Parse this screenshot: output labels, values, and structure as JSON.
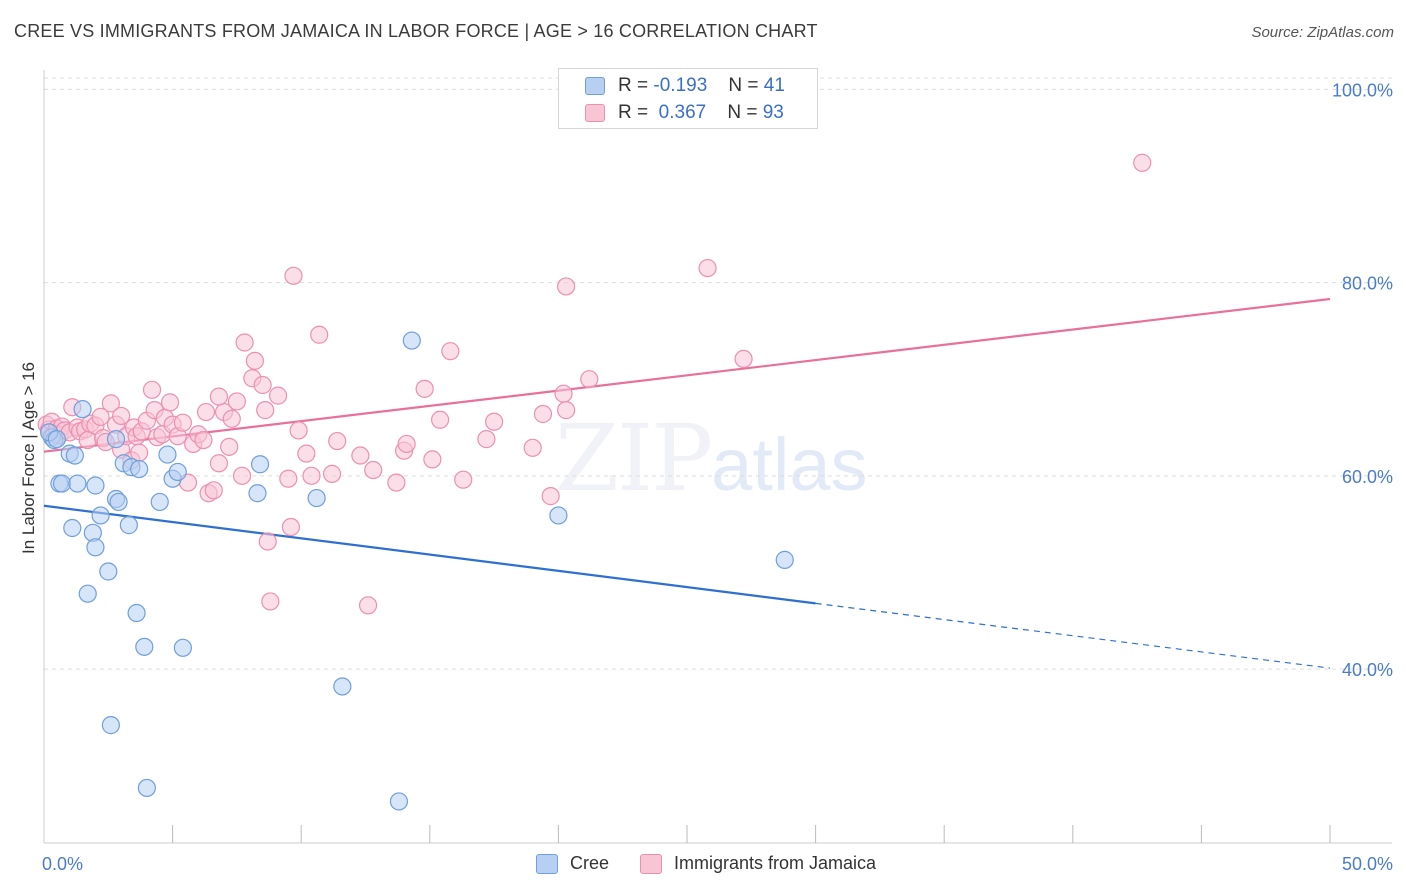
{
  "title": "CREE VS IMMIGRANTS FROM JAMAICA IN LABOR FORCE | AGE > 16 CORRELATION CHART",
  "source": "Source: ZipAtlas.com",
  "watermark": {
    "zip": "ZIP",
    "atlas": "atlas"
  },
  "colors": {
    "cree_fill": "#b7d0f2",
    "cree_stroke": "#6f9fdc",
    "cree_line": "#2e6fd0",
    "jam_fill": "#f8c5d5",
    "jam_stroke": "#ee8fae",
    "jam_line": "#e8709a",
    "grid": "#dddddd",
    "tick_label": "#4a7cc9"
  },
  "legend_top": {
    "rows": [
      {
        "r_label": "R =",
        "r_value": "-0.193",
        "n_label": "N =",
        "n_value": "41"
      },
      {
        "r_label": "R =",
        "r_value": "0.367",
        "n_label": "N =",
        "n_value": "93"
      }
    ]
  },
  "legend_bottom": {
    "cree": "Cree",
    "jamaica": "Immigrants from Jamaica"
  },
  "chart_data": {
    "type": "scatter",
    "title": "CREE VS IMMIGRANTS FROM JAMAICA IN LABOR FORCE | AGE > 16 CORRELATION CHART",
    "xlabel": "",
    "ylabel": "In Labor Force | Age > 16",
    "xlim": [
      0,
      50
    ],
    "ylim": [
      22,
      102
    ],
    "x_tick_labels": [
      "0.0%",
      "50.0%"
    ],
    "y_ticks": [
      40,
      60,
      80,
      100
    ],
    "y_tick_labels": [
      "40.0%",
      "60.0%",
      "80.0%",
      "100.0%"
    ],
    "grid": true,
    "legend_position": "top-center",
    "series": [
      {
        "name": "Cree",
        "R": -0.193,
        "N": 41,
        "trend": {
          "x0": 0,
          "y0": 56.9,
          "x1": 30,
          "y1": 46.8,
          "dash_to_x": 50,
          "dash_to_y": 40.1
        },
        "points": [
          [
            0.3,
            64.0
          ],
          [
            0.4,
            63.7
          ],
          [
            0.6,
            59.2
          ],
          [
            0.7,
            59.2
          ],
          [
            1.0,
            62.3
          ],
          [
            1.1,
            54.6
          ],
          [
            1.2,
            62.1
          ],
          [
            1.3,
            59.2
          ],
          [
            1.5,
            66.9
          ],
          [
            1.7,
            47.8
          ],
          [
            1.9,
            54.1
          ],
          [
            2.0,
            59.0
          ],
          [
            2.0,
            52.6
          ],
          [
            2.2,
            55.9
          ],
          [
            2.5,
            50.1
          ],
          [
            2.6,
            34.2
          ],
          [
            2.8,
            63.8
          ],
          [
            2.8,
            57.6
          ],
          [
            2.9,
            57.3
          ],
          [
            3.1,
            61.3
          ],
          [
            3.3,
            54.9
          ],
          [
            3.4,
            60.9
          ],
          [
            3.6,
            45.8
          ],
          [
            3.7,
            60.7
          ],
          [
            3.9,
            42.3
          ],
          [
            4.0,
            27.7
          ],
          [
            4.5,
            57.3
          ],
          [
            4.8,
            62.2
          ],
          [
            5.0,
            59.7
          ],
          [
            5.2,
            60.4
          ],
          [
            5.4,
            42.2
          ],
          [
            8.3,
            58.2
          ],
          [
            8.4,
            61.2
          ],
          [
            10.6,
            57.7
          ],
          [
            11.6,
            38.2
          ],
          [
            13.8,
            26.3
          ],
          [
            14.3,
            74.0
          ],
          [
            20.0,
            55.9
          ],
          [
            28.8,
            51.3
          ],
          [
            0.2,
            64.5
          ],
          [
            0.5,
            63.8
          ]
        ]
      },
      {
        "name": "Immigrants from Jamaica",
        "R": 0.367,
        "N": 93,
        "trend": {
          "x0": 0,
          "y0": 62.5,
          "x1": 50,
          "y1": 78.3
        },
        "points": [
          [
            0.1,
            65.3
          ],
          [
            0.2,
            64.8
          ],
          [
            0.3,
            65.6
          ],
          [
            0.4,
            64.3
          ],
          [
            0.5,
            64.9
          ],
          [
            0.6,
            64.2
          ],
          [
            0.7,
            65.1
          ],
          [
            0.8,
            64.7
          ],
          [
            1.0,
            64.5
          ],
          [
            1.1,
            67.1
          ],
          [
            1.3,
            65.0
          ],
          [
            1.4,
            64.6
          ],
          [
            1.6,
            64.8
          ],
          [
            1.7,
            63.7
          ],
          [
            1.8,
            65.4
          ],
          [
            2.0,
            65.2
          ],
          [
            2.2,
            66.1
          ],
          [
            2.3,
            63.9
          ],
          [
            2.4,
            63.5
          ],
          [
            2.6,
            67.5
          ],
          [
            2.8,
            65.3
          ],
          [
            3.0,
            62.7
          ],
          [
            3.0,
            66.2
          ],
          [
            3.2,
            64.1
          ],
          [
            3.4,
            61.6
          ],
          [
            3.5,
            65.0
          ],
          [
            3.6,
            64.1
          ],
          [
            3.8,
            64.6
          ],
          [
            4.0,
            65.7
          ],
          [
            4.2,
            68.9
          ],
          [
            4.3,
            66.8
          ],
          [
            4.4,
            64.0
          ],
          [
            4.6,
            64.3
          ],
          [
            4.7,
            66.0
          ],
          [
            4.9,
            67.6
          ],
          [
            5.0,
            65.3
          ],
          [
            5.2,
            64.1
          ],
          [
            5.4,
            65.5
          ],
          [
            5.6,
            59.3
          ],
          [
            5.8,
            63.3
          ],
          [
            6.0,
            64.3
          ],
          [
            6.2,
            63.7
          ],
          [
            6.3,
            66.6
          ],
          [
            6.4,
            58.2
          ],
          [
            6.6,
            58.5
          ],
          [
            6.8,
            61.3
          ],
          [
            7.0,
            66.6
          ],
          [
            7.2,
            63.0
          ],
          [
            7.3,
            65.9
          ],
          [
            7.5,
            67.7
          ],
          [
            7.7,
            60.0
          ],
          [
            7.8,
            73.8
          ],
          [
            8.1,
            70.1
          ],
          [
            8.2,
            71.9
          ],
          [
            8.5,
            69.4
          ],
          [
            8.6,
            66.8
          ],
          [
            8.7,
            53.2
          ],
          [
            8.8,
            47.0
          ],
          [
            9.1,
            68.3
          ],
          [
            9.5,
            59.7
          ],
          [
            9.6,
            54.7
          ],
          [
            9.7,
            80.7
          ],
          [
            10.2,
            62.3
          ],
          [
            10.4,
            60.0
          ],
          [
            10.7,
            74.6
          ],
          [
            11.2,
            60.2
          ],
          [
            11.4,
            63.6
          ],
          [
            12.3,
            62.1
          ],
          [
            12.6,
            46.6
          ],
          [
            12.8,
            60.6
          ],
          [
            13.7,
            59.3
          ],
          [
            14.0,
            62.6
          ],
          [
            14.1,
            63.3
          ],
          [
            14.8,
            69.0
          ],
          [
            15.1,
            61.7
          ],
          [
            15.4,
            65.8
          ],
          [
            15.8,
            72.9
          ],
          [
            16.3,
            59.6
          ],
          [
            17.2,
            63.8
          ],
          [
            17.5,
            65.6
          ],
          [
            19.0,
            62.9
          ],
          [
            19.4,
            66.4
          ],
          [
            19.7,
            57.9
          ],
          [
            20.2,
            68.5
          ],
          [
            20.3,
            66.8
          ],
          [
            20.3,
            79.6
          ],
          [
            27.2,
            72.1
          ],
          [
            25.8,
            81.5
          ],
          [
            42.7,
            92.4
          ],
          [
            21.2,
            70.0
          ],
          [
            3.7,
            62.4
          ],
          [
            6.8,
            68.2
          ],
          [
            9.9,
            64.7
          ]
        ]
      }
    ]
  }
}
